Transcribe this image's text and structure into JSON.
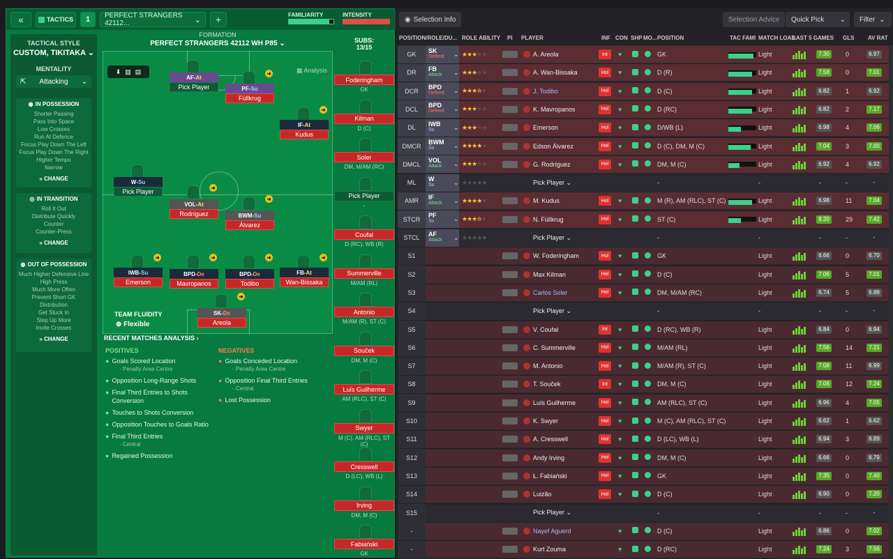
{
  "topbar": {
    "back": "«",
    "tactics": "TACTICS",
    "slot": "1",
    "tactic_name": "PERFECT STRANGERS 42112...",
    "add": "+",
    "familiarity": "FAMILIARITY",
    "intensity": "INTENSITY"
  },
  "sidebar": {
    "style_title": "TACTICAL STYLE",
    "style_value": "CUSTOM, TIKITAKA",
    "mentality_title": "MENTALITY",
    "mentality_value": "Attacking",
    "in_possession": {
      "title": "IN POSSESSION",
      "items": [
        "Shorter Passing",
        "Pass Into Space",
        "Low Crosses",
        "Run At Defence",
        "Focus Play Down The Left",
        "Focus Play Down The Right",
        "Higher Tempo",
        "Narrow"
      ],
      "change": "CHANGE"
    },
    "in_transition": {
      "title": "IN TRANSITION",
      "items": [
        "Roll It Out",
        "Distribute Quickly",
        "Counter",
        "Counter-Press"
      ],
      "change": "CHANGE"
    },
    "out_possession": {
      "title": "OUT OF POSSESSION",
      "items": [
        "Much Higher Defensive Line",
        "High Press",
        "Much More Often",
        "Prevent Short GK Distribution",
        "Get Stuck In",
        "Step Up More",
        "Invite Crosses"
      ],
      "change": "CHANGE"
    }
  },
  "formation": {
    "title": "FORMATION",
    "name": "PERFECT STRANGERS 42112 WH P85",
    "analysis": "Analysis",
    "subs_title": "SUBS:",
    "subs_count": "13/15",
    "fluidity_title": "TEAM FLUIDITY",
    "fluidity_value": "Flexible"
  },
  "pitch_players": [
    {
      "role": "AF",
      "duty": "At",
      "name": "Pick Player"
    },
    {
      "role": "PF",
      "duty": "Su",
      "name": "Füllkrug"
    },
    {
      "role": "IF",
      "duty": "At",
      "name": "Kudus"
    },
    {
      "role": "W",
      "duty": "Su",
      "name": "Pick Player"
    },
    {
      "role": "VOL",
      "duty": "At",
      "name": "Rodríguez"
    },
    {
      "role": "BWM",
      "duty": "Su",
      "name": "Álvarez"
    },
    {
      "role": "IWB",
      "duty": "Su",
      "name": "Emerson"
    },
    {
      "role": "BPD",
      "duty": "De",
      "name": "Mavropanos"
    },
    {
      "role": "BPD",
      "duty": "De",
      "name": "Todibo"
    },
    {
      "role": "FB",
      "duty": "At",
      "name": "Wan-Bissaka"
    },
    {
      "role": "SK",
      "duty": "De",
      "name": "Areola"
    }
  ],
  "subs": [
    {
      "name": "Foderingham",
      "pos": "GK"
    },
    {
      "name": "Kilman",
      "pos": "D (C)"
    },
    {
      "name": "Soler",
      "pos": "DM, M/AM (RC)"
    },
    {
      "name": "Pick Player",
      "pos": "-"
    },
    {
      "name": "Coufal",
      "pos": "D (RC), WB (R)"
    },
    {
      "name": "Summerville",
      "pos": "M/AM (RL)"
    },
    {
      "name": "Antonio",
      "pos": "M/AM (R), ST (C)"
    },
    {
      "name": "Souček",
      "pos": "DM, M (C)"
    },
    {
      "name": "Luís Guilherme",
      "pos": "AM (RLC), ST (C)"
    },
    {
      "name": "Swyer",
      "pos": "M (C), AM (RLC), ST (C)"
    },
    {
      "name": "Cresswell",
      "pos": "D (LC), WB (L)"
    },
    {
      "name": "Irving",
      "pos": "DM, M (C)"
    },
    {
      "name": "Fabiański",
      "pos": "GK"
    }
  ],
  "analysis": {
    "title": "RECENT MATCHES ANALYSIS ›",
    "positives_title": "POSITIVES",
    "positives": [
      {
        "t": "Goals Scored Location",
        "s": "- Penalty Area Centre"
      },
      {
        "t": "Opposition Long-Range Shots",
        "s": ""
      },
      {
        "t": "Final Third Entries to Shots Conversion",
        "s": ""
      },
      {
        "t": "Touches to Shots Conversion",
        "s": ""
      },
      {
        "t": "Opposition Touches to Goals Ratio",
        "s": ""
      },
      {
        "t": "Final Third Entries",
        "s": "- Central"
      },
      {
        "t": "Regained Possession",
        "s": ""
      }
    ],
    "negatives_title": "NEGATIVES",
    "negatives": [
      {
        "t": "Goals Conceded Location",
        "s": "- Penalty Area Centre"
      },
      {
        "t": "Opposition Final Third Entries",
        "s": "- Central"
      },
      {
        "t": "Lost Possession",
        "s": ""
      }
    ]
  },
  "right_top": {
    "selection_info": "Selection Info",
    "selection_advice": "Selection Advice",
    "quick_pick": "Quick Pick",
    "filter": "Filter"
  },
  "headers": [
    "POSITION/ROLE/DU...",
    "ROLE ABILITY",
    "PI",
    "PLAYER",
    "INF",
    "CON",
    "SHP",
    "MO...",
    "POSITION",
    "TAC FAMI",
    "MATCH LOAD",
    "LAST 5 GAMES",
    "GLS",
    "AV RAT"
  ],
  "rows": [
    {
      "slot": "GK",
      "role": "SK",
      "duty": "Defend",
      "stars": 3,
      "player": "A. Areola",
      "inf": "Int",
      "pos": "GK",
      "fam": 0.9,
      "load": "Light",
      "last": "7.30",
      "gls": "0",
      "av": "6.97"
    },
    {
      "slot": "DR",
      "role": "FB",
      "duty": "Attack",
      "stars": 3,
      "player": "A. Wan-Bissaka",
      "inf": "Hol",
      "pos": "D (R)",
      "fam": 0.85,
      "load": "Light",
      "last": "7.58",
      "gls": "0",
      "av": "7.01"
    },
    {
      "slot": "DCR",
      "role": "BPD",
      "duty": "Defend",
      "stars": 3.5,
      "player": "J. Todibo",
      "inf": "Hol",
      "pos": "D (C)",
      "fam": 0.85,
      "load": "Light",
      "last": "6.82",
      "gls": "1",
      "av": "6.92"
    },
    {
      "slot": "DCL",
      "role": "BPD",
      "duty": "Defend",
      "stars": 3,
      "player": "K. Mavropanos",
      "inf": "Hol",
      "pos": "D (RC)",
      "fam": 0.85,
      "load": "Light",
      "last": "6.82",
      "gls": "2",
      "av": "7.17"
    },
    {
      "slot": "DL",
      "role": "IWB",
      "duty": "Su",
      "stars": 3,
      "player": "Emerson",
      "inf": "Hol",
      "pos": "D/WB (L)",
      "fam": 0.45,
      "load": "Light",
      "last": "6.98",
      "gls": "4",
      "av": "7.06"
    },
    {
      "slot": "DMCR",
      "role": "BWM",
      "duty": "Su",
      "stars": 4,
      "player": "Edson Álvarez",
      "inf": "Hol",
      "pos": "D (C), DM, M (C)",
      "fam": 0.8,
      "load": "Light",
      "last": "7.04",
      "gls": "3",
      "av": "7.00"
    },
    {
      "slot": "DMCL",
      "role": "VOL",
      "duty": "Attack",
      "stars": 3,
      "player": "G. Rodríguez",
      "inf": "Hol",
      "pos": "DM, M (C)",
      "fam": 0.4,
      "load": "Light",
      "last": "6.92",
      "gls": "4",
      "av": "6.92"
    },
    {
      "slot": "ML",
      "role": "W",
      "duty": "Su",
      "stars": 0,
      "player": "Pick Player",
      "inf": "",
      "pos": "-",
      "fam": 0,
      "load": "-",
      "last": "-",
      "gls": "-",
      "av": "-"
    },
    {
      "slot": "AMR",
      "role": "IF",
      "duty": "Attack",
      "stars": 4,
      "player": "M. Kudus",
      "inf": "Hol",
      "pos": "M (R), AM (RLC), ST (C)",
      "fam": 0.85,
      "load": "Light",
      "last": "6.98",
      "gls": "11",
      "av": "7.04"
    },
    {
      "slot": "STCR",
      "role": "PF",
      "duty": "Su",
      "stars": 3.5,
      "player": "N. Füllkrug",
      "inf": "Hol",
      "pos": "ST (C)",
      "fam": 0.45,
      "load": "Light",
      "last": "8.20",
      "gls": "29",
      "av": "7.42"
    },
    {
      "slot": "STCL",
      "role": "AF",
      "duty": "Attack",
      "stars": 0,
      "player": "Pick Player",
      "inf": "",
      "pos": "-",
      "fam": 0,
      "load": "-",
      "last": "-",
      "gls": "-",
      "av": "-"
    },
    {
      "slot": "S1",
      "role": "",
      "duty": "",
      "stars": 0,
      "player": "W. Foderingham",
      "inf": "Hol",
      "pos": "GK",
      "fam": 0,
      "load": "Light",
      "last": "6.66",
      "gls": "0",
      "av": "6.70"
    },
    {
      "slot": "S2",
      "role": "",
      "duty": "",
      "stars": 0,
      "player": "Max Kilman",
      "inf": "Hol",
      "pos": "D (C)",
      "fam": 0,
      "load": "Light",
      "last": "7.06",
      "gls": "5",
      "av": "7.01"
    },
    {
      "slot": "S3",
      "role": "",
      "duty": "",
      "stars": 0,
      "player": "Carlos Soler",
      "inf": "Hol",
      "pos": "DM, M/AM (RC)",
      "fam": 0,
      "load": "Light",
      "last": "6.74",
      "gls": "5",
      "av": "6.88"
    },
    {
      "slot": "S4",
      "role": "",
      "duty": "",
      "stars": 0,
      "player": "Pick Player",
      "inf": "",
      "pos": "-",
      "fam": 0,
      "load": "-",
      "last": "-",
      "gls": "-",
      "av": "-"
    },
    {
      "slot": "S5",
      "role": "",
      "duty": "",
      "stars": 0,
      "player": "V. Coufal",
      "inf": "Int",
      "pos": "D (RC), WB (R)",
      "fam": 0,
      "load": "Light",
      "last": "6.84",
      "gls": "0",
      "av": "6.94"
    },
    {
      "slot": "S6",
      "role": "",
      "duty": "",
      "stars": 0,
      "player": "C. Summerville",
      "inf": "Hol",
      "pos": "M/AM (RL)",
      "fam": 0,
      "load": "Light",
      "last": "7.56",
      "gls": "14",
      "av": "7.21"
    },
    {
      "slot": "S7",
      "role": "",
      "duty": "",
      "stars": 0,
      "player": "M. Antonio",
      "inf": "Hol",
      "pos": "M/AM (R), ST (C)",
      "fam": 0,
      "load": "Light",
      "last": "7.08",
      "gls": "11",
      "av": "6.99"
    },
    {
      "slot": "S8",
      "role": "",
      "duty": "",
      "stars": 0,
      "player": "T. Souček",
      "inf": "Int",
      "pos": "DM, M (C)",
      "fam": 0,
      "load": "Light",
      "last": "7.06",
      "gls": "12",
      "av": "7.24"
    },
    {
      "slot": "S9",
      "role": "",
      "duty": "",
      "stars": 0,
      "player": "Luís Guilherme",
      "inf": "Hol",
      "pos": "AM (RLC), ST (C)",
      "fam": 0,
      "load": "Light",
      "last": "6.96",
      "gls": "4",
      "av": "7.05"
    },
    {
      "slot": "S10",
      "role": "",
      "duty": "",
      "stars": 0,
      "player": "K. Swyer",
      "inf": "Hol",
      "pos": "M (C), AM (RLC), ST (C)",
      "fam": 0,
      "load": "Light",
      "last": "6.62",
      "gls": "1",
      "av": "6.62"
    },
    {
      "slot": "S11",
      "role": "",
      "duty": "",
      "stars": 0,
      "player": "A. Cresswell",
      "inf": "Hol",
      "pos": "D (LC), WB (L)",
      "fam": 0,
      "load": "Light",
      "last": "6.94",
      "gls": "3",
      "av": "6.89"
    },
    {
      "slot": "S12",
      "role": "",
      "duty": "",
      "stars": 0,
      "player": "Andy Irving",
      "inf": "Hol",
      "pos": "DM, M (C)",
      "fam": 0,
      "load": "Light",
      "last": "6.66",
      "gls": "0",
      "av": "6.79"
    },
    {
      "slot": "S13",
      "role": "",
      "duty": "",
      "stars": 0,
      "player": "Ł. Fabiański",
      "inf": "Hol",
      "pos": "GK",
      "fam": 0,
      "load": "Light",
      "last": "7.35",
      "gls": "0",
      "av": "7.40"
    },
    {
      "slot": "S14",
      "role": "",
      "duty": "",
      "stars": 0,
      "player": "Luizão",
      "inf": "Hol",
      "pos": "D (C)",
      "fam": 0,
      "load": "Light",
      "last": "6.90",
      "gls": "0",
      "av": "7.20"
    },
    {
      "slot": "S15",
      "role": "",
      "duty": "",
      "stars": 0,
      "player": "Pick Player",
      "inf": "",
      "pos": "-",
      "fam": 0,
      "load": "-",
      "last": "-",
      "gls": "-",
      "av": "-"
    },
    {
      "slot": "-",
      "role": "",
      "duty": "",
      "stars": 0,
      "player": "Nayef Aguerd",
      "inf": "",
      "pos": "D (C)",
      "fam": 0,
      "load": "Light",
      "last": "6.86",
      "gls": "0",
      "av": "7.02"
    },
    {
      "slot": "-",
      "role": "",
      "duty": "",
      "stars": 0,
      "player": "Kurt Zouma",
      "inf": "",
      "pos": "D (RC)",
      "fam": 0,
      "load": "Light",
      "last": "7.24",
      "gls": "3",
      "av": "7.56"
    }
  ]
}
